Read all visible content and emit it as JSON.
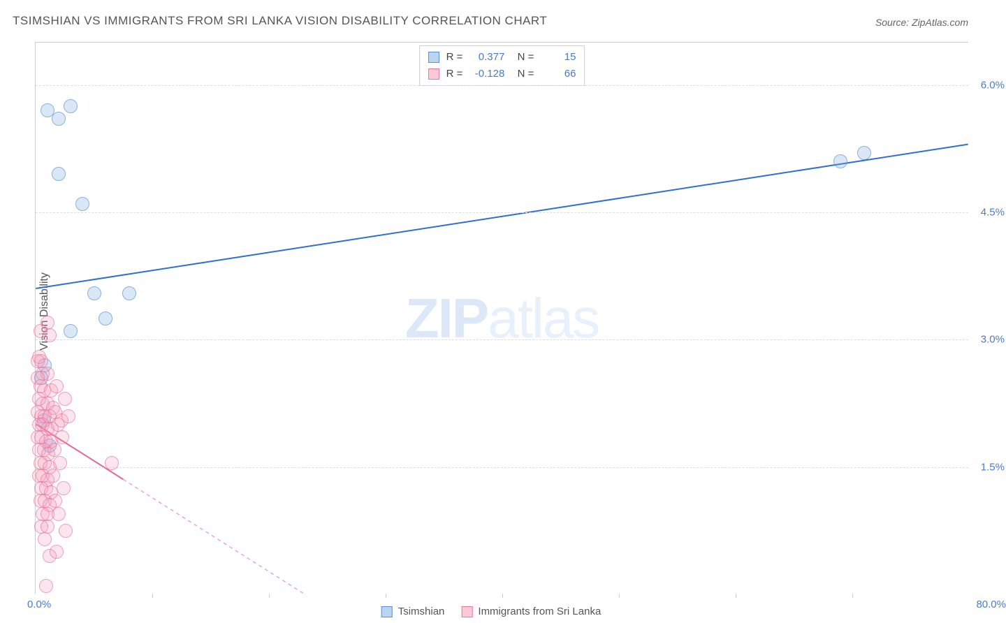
{
  "title": "TSIMSHIAN VS IMMIGRANTS FROM SRI LANKA VISION DISABILITY CORRELATION CHART",
  "source": "Source: ZipAtlas.com",
  "ylabel": "Vision Disability",
  "watermark_bold": "ZIP",
  "watermark_light": "atlas",
  "chart": {
    "type": "scatter",
    "xlim": [
      0,
      80
    ],
    "ylim": [
      0,
      6.5
    ],
    "xticks": [
      10,
      20,
      30,
      40,
      50,
      60,
      70
    ],
    "yticks": [
      1.5,
      3.0,
      4.5,
      6.0
    ],
    "ytick_labels": [
      "1.5%",
      "3.0%",
      "4.5%",
      "6.0%"
    ],
    "xlabel_min": "0.0%",
    "xlabel_max": "80.0%",
    "background_color": "#ffffff",
    "grid_color": "#dddddd",
    "marker_size": 20,
    "series": [
      {
        "name": "Tsimshian",
        "color_fill": "rgba(120,170,230,0.4)",
        "color_stroke": "#5a8fd0",
        "trend": {
          "x1": 0,
          "y1": 3.6,
          "x2": 80,
          "y2": 5.3,
          "color": "#2f6fd0",
          "width": 2,
          "dash": "none"
        },
        "stats": {
          "R": "0.377",
          "N": "15"
        },
        "points": [
          [
            1.0,
            5.7
          ],
          [
            2.0,
            5.6
          ],
          [
            3.0,
            5.75
          ],
          [
            2.0,
            4.95
          ],
          [
            4.0,
            4.6
          ],
          [
            5.0,
            3.55
          ],
          [
            8.0,
            3.55
          ],
          [
            6.0,
            3.25
          ],
          [
            3.0,
            3.1
          ],
          [
            0.8,
            2.7
          ],
          [
            0.5,
            2.55
          ],
          [
            0.7,
            2.05
          ],
          [
            1.2,
            1.75
          ],
          [
            69.0,
            5.1
          ],
          [
            71.0,
            5.2
          ]
        ]
      },
      {
        "name": "Immigrants from Sri Lanka",
        "color_fill": "rgba(245,150,180,0.35)",
        "color_stroke": "#e67a9f",
        "trend": {
          "x1": 0,
          "y1": 2.0,
          "x2": 23,
          "y2": 0.0,
          "color": "#e36a92",
          "width": 2,
          "dash_after_x": 7.5
        },
        "stats": {
          "R": "-0.128",
          "N": "66"
        },
        "points": [
          [
            1.0,
            3.2
          ],
          [
            0.4,
            3.1
          ],
          [
            1.2,
            3.05
          ],
          [
            0.3,
            2.8
          ],
          [
            0.5,
            2.75
          ],
          [
            0.2,
            2.75
          ],
          [
            0.6,
            2.6
          ],
          [
            1.0,
            2.6
          ],
          [
            0.2,
            2.55
          ],
          [
            0.4,
            2.45
          ],
          [
            0.7,
            2.4
          ],
          [
            1.3,
            2.4
          ],
          [
            1.8,
            2.45
          ],
          [
            0.3,
            2.3
          ],
          [
            0.6,
            2.25
          ],
          [
            1.0,
            2.25
          ],
          [
            1.5,
            2.2
          ],
          [
            0.2,
            2.15
          ],
          [
            0.5,
            2.1
          ],
          [
            0.8,
            2.1
          ],
          [
            1.2,
            2.1
          ],
          [
            1.7,
            2.15
          ],
          [
            0.3,
            2.0
          ],
          [
            0.6,
            2.0
          ],
          [
            1.0,
            1.95
          ],
          [
            1.4,
            1.95
          ],
          [
            1.9,
            2.0
          ],
          [
            2.2,
            2.05
          ],
          [
            0.2,
            1.85
          ],
          [
            0.5,
            1.85
          ],
          [
            0.9,
            1.8
          ],
          [
            1.3,
            1.8
          ],
          [
            0.3,
            1.7
          ],
          [
            0.7,
            1.7
          ],
          [
            1.1,
            1.65
          ],
          [
            1.6,
            1.7
          ],
          [
            0.4,
            1.55
          ],
          [
            0.8,
            1.55
          ],
          [
            1.2,
            1.5
          ],
          [
            0.3,
            1.4
          ],
          [
            0.6,
            1.4
          ],
          [
            1.0,
            1.35
          ],
          [
            1.5,
            1.4
          ],
          [
            0.5,
            1.25
          ],
          [
            0.9,
            1.25
          ],
          [
            1.3,
            1.2
          ],
          [
            0.4,
            1.1
          ],
          [
            0.8,
            1.1
          ],
          [
            1.2,
            1.05
          ],
          [
            1.7,
            1.1
          ],
          [
            0.6,
            0.95
          ],
          [
            1.0,
            0.95
          ],
          [
            0.5,
            0.8
          ],
          [
            1.0,
            0.8
          ],
          [
            0.8,
            0.65
          ],
          [
            1.2,
            0.45
          ],
          [
            1.8,
            0.5
          ],
          [
            0.9,
            0.1
          ],
          [
            6.5,
            1.55
          ],
          [
            2.5,
            2.3
          ],
          [
            2.8,
            2.1
          ],
          [
            2.3,
            1.85
          ],
          [
            2.1,
            1.55
          ],
          [
            2.4,
            1.25
          ],
          [
            2.0,
            0.95
          ],
          [
            2.6,
            0.75
          ]
        ]
      }
    ]
  },
  "legend": {
    "series1_label": "Tsimshian",
    "series2_label": "Immigrants from Sri Lanka"
  }
}
